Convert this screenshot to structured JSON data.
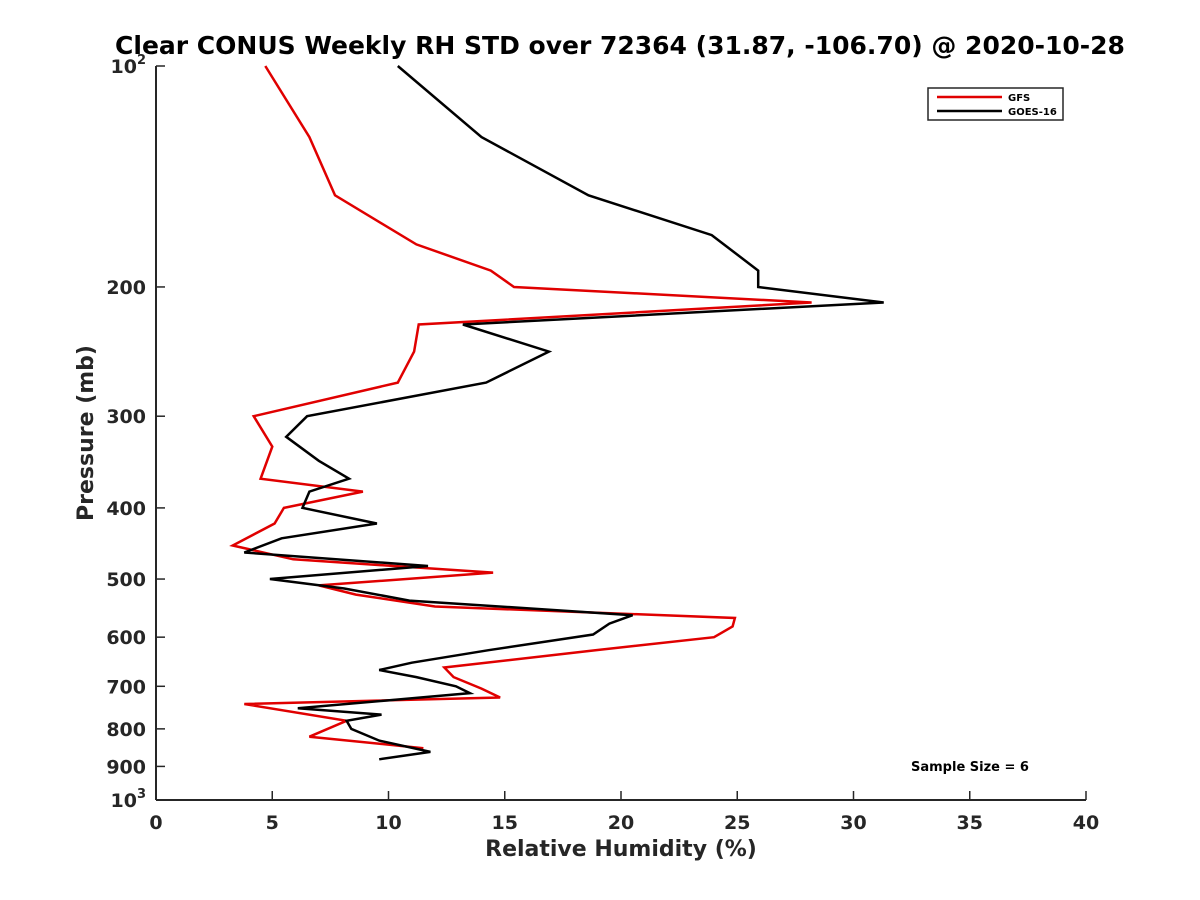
{
  "chart_data": {
    "type": "line",
    "title": "Clear CONUS Weekly RH STD over 72364 (31.87, -106.70) @ 2020-10-28",
    "xlabel": "Relative Humidity (%)",
    "ylabel": "Pressure (mb)",
    "xlim": [
      0,
      40
    ],
    "ylim": [
      100,
      1000
    ],
    "y_scale": "log",
    "y_reversed": true,
    "x_ticks": [
      0,
      5,
      10,
      15,
      20,
      25,
      30,
      35,
      40
    ],
    "y_ticks": [
      {
        "value": 100,
        "base": "10",
        "exp": "2"
      },
      {
        "value": 200,
        "label": "200"
      },
      {
        "value": 300,
        "label": "300"
      },
      {
        "value": 400,
        "label": "400"
      },
      {
        "value": 500,
        "label": "500"
      },
      {
        "value": 600,
        "label": "600"
      },
      {
        "value": 700,
        "label": "700"
      },
      {
        "value": 800,
        "label": "800"
      },
      {
        "value": 900,
        "label": "900"
      },
      {
        "value": 1000,
        "base": "10",
        "exp": "3"
      }
    ],
    "grid": false,
    "legend_position": "top-right",
    "annotation": "Sample Size = 6",
    "series": [
      {
        "name": "GFS",
        "color": "#e00000",
        "x": [
          4.7,
          6.6,
          7.7,
          11.2,
          14.4,
          15.4,
          28.2,
          11.3,
          11.1,
          10.4,
          4.2,
          5.0,
          4.5,
          8.9,
          5.5,
          5.1,
          3.3,
          5.9,
          14.5,
          7.0,
          8.6,
          12.0,
          24.9,
          24.8,
          24.0,
          18.9,
          12.4,
          12.8,
          14.0,
          14.8,
          3.8,
          8.2,
          6.6,
          11.5
        ],
        "y": [
          100,
          125,
          150,
          175,
          190,
          200,
          210,
          225,
          245,
          270,
          300,
          330,
          365,
          380,
          400,
          420,
          450,
          470,
          490,
          510,
          525,
          545,
          565,
          580,
          600,
          625,
          660,
          680,
          705,
          725,
          740,
          780,
          820,
          850
        ]
      },
      {
        "name": "GOES-16",
        "color": "#000000",
        "x": [
          10.4,
          14.0,
          18.6,
          23.9,
          25.9,
          25.9,
          31.3,
          13.2,
          16.9,
          14.2,
          6.5,
          5.6,
          7.0,
          8.3,
          6.6,
          6.3,
          9.5,
          5.4,
          3.8,
          11.7,
          4.9,
          8.1,
          10.9,
          20.5,
          19.5,
          18.8,
          14.3,
          11.0,
          9.6,
          11.2,
          12.9,
          13.5,
          6.1,
          9.7,
          8.2,
          8.4,
          9.6,
          11.8,
          9.6
        ],
        "y": [
          100,
          125,
          150,
          170,
          190,
          200,
          210,
          225,
          245,
          270,
          300,
          320,
          345,
          365,
          380,
          400,
          420,
          440,
          460,
          480,
          500,
          515,
          535,
          560,
          575,
          595,
          625,
          650,
          665,
          680,
          700,
          715,
          750,
          765,
          780,
          800,
          830,
          860,
          880
        ]
      }
    ]
  }
}
